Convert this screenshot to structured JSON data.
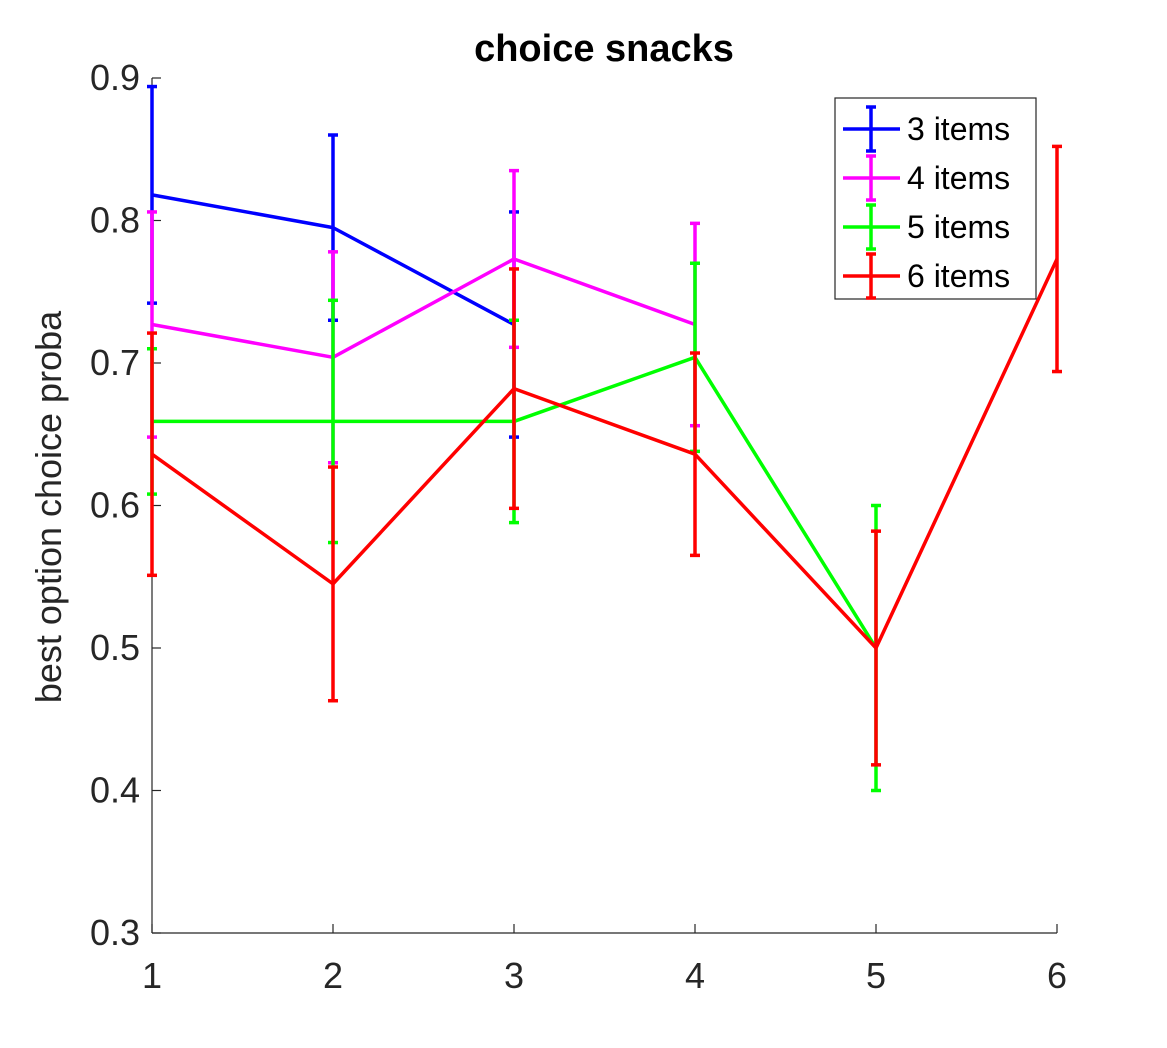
{
  "chart_data": {
    "type": "line",
    "title": "choice snacks",
    "xlabel": "",
    "ylabel": "best option choice proba",
    "xlim": [
      1,
      6
    ],
    "ylim": [
      0.3,
      0.9
    ],
    "xticks": [
      "1",
      "2",
      "3",
      "4",
      "5",
      "6"
    ],
    "yticks": [
      "0.3",
      "0.4",
      "0.5",
      "0.6",
      "0.7",
      "0.8",
      "0.9"
    ],
    "grid": false,
    "legend_position": "top-right",
    "series": [
      {
        "name": "3 items",
        "color": "#0000ff",
        "x": [
          1,
          2,
          3
        ],
        "y": [
          0.818,
          0.795,
          0.727
        ],
        "err": [
          0.076,
          0.065,
          0.079
        ]
      },
      {
        "name": "4 items",
        "color": "#ff00ff",
        "x": [
          1,
          2,
          3,
          4
        ],
        "y": [
          0.727,
          0.704,
          0.773,
          0.727
        ],
        "err": [
          0.079,
          0.074,
          0.062,
          0.071
        ]
      },
      {
        "name": "5 items",
        "color": "#00ff00",
        "x": [
          1,
          2,
          3,
          4,
          5
        ],
        "y": [
          0.659,
          0.659,
          0.659,
          0.704,
          0.5
        ],
        "err": [
          0.051,
          0.085,
          0.071,
          0.066,
          0.1
        ]
      },
      {
        "name": "6 items",
        "color": "#ff0000",
        "x": [
          1,
          2,
          3,
          4,
          5,
          6
        ],
        "y": [
          0.636,
          0.545,
          0.682,
          0.636,
          0.5,
          0.773
        ],
        "err": [
          0.085,
          0.082,
          0.084,
          0.071,
          0.082,
          0.079
        ]
      }
    ]
  }
}
